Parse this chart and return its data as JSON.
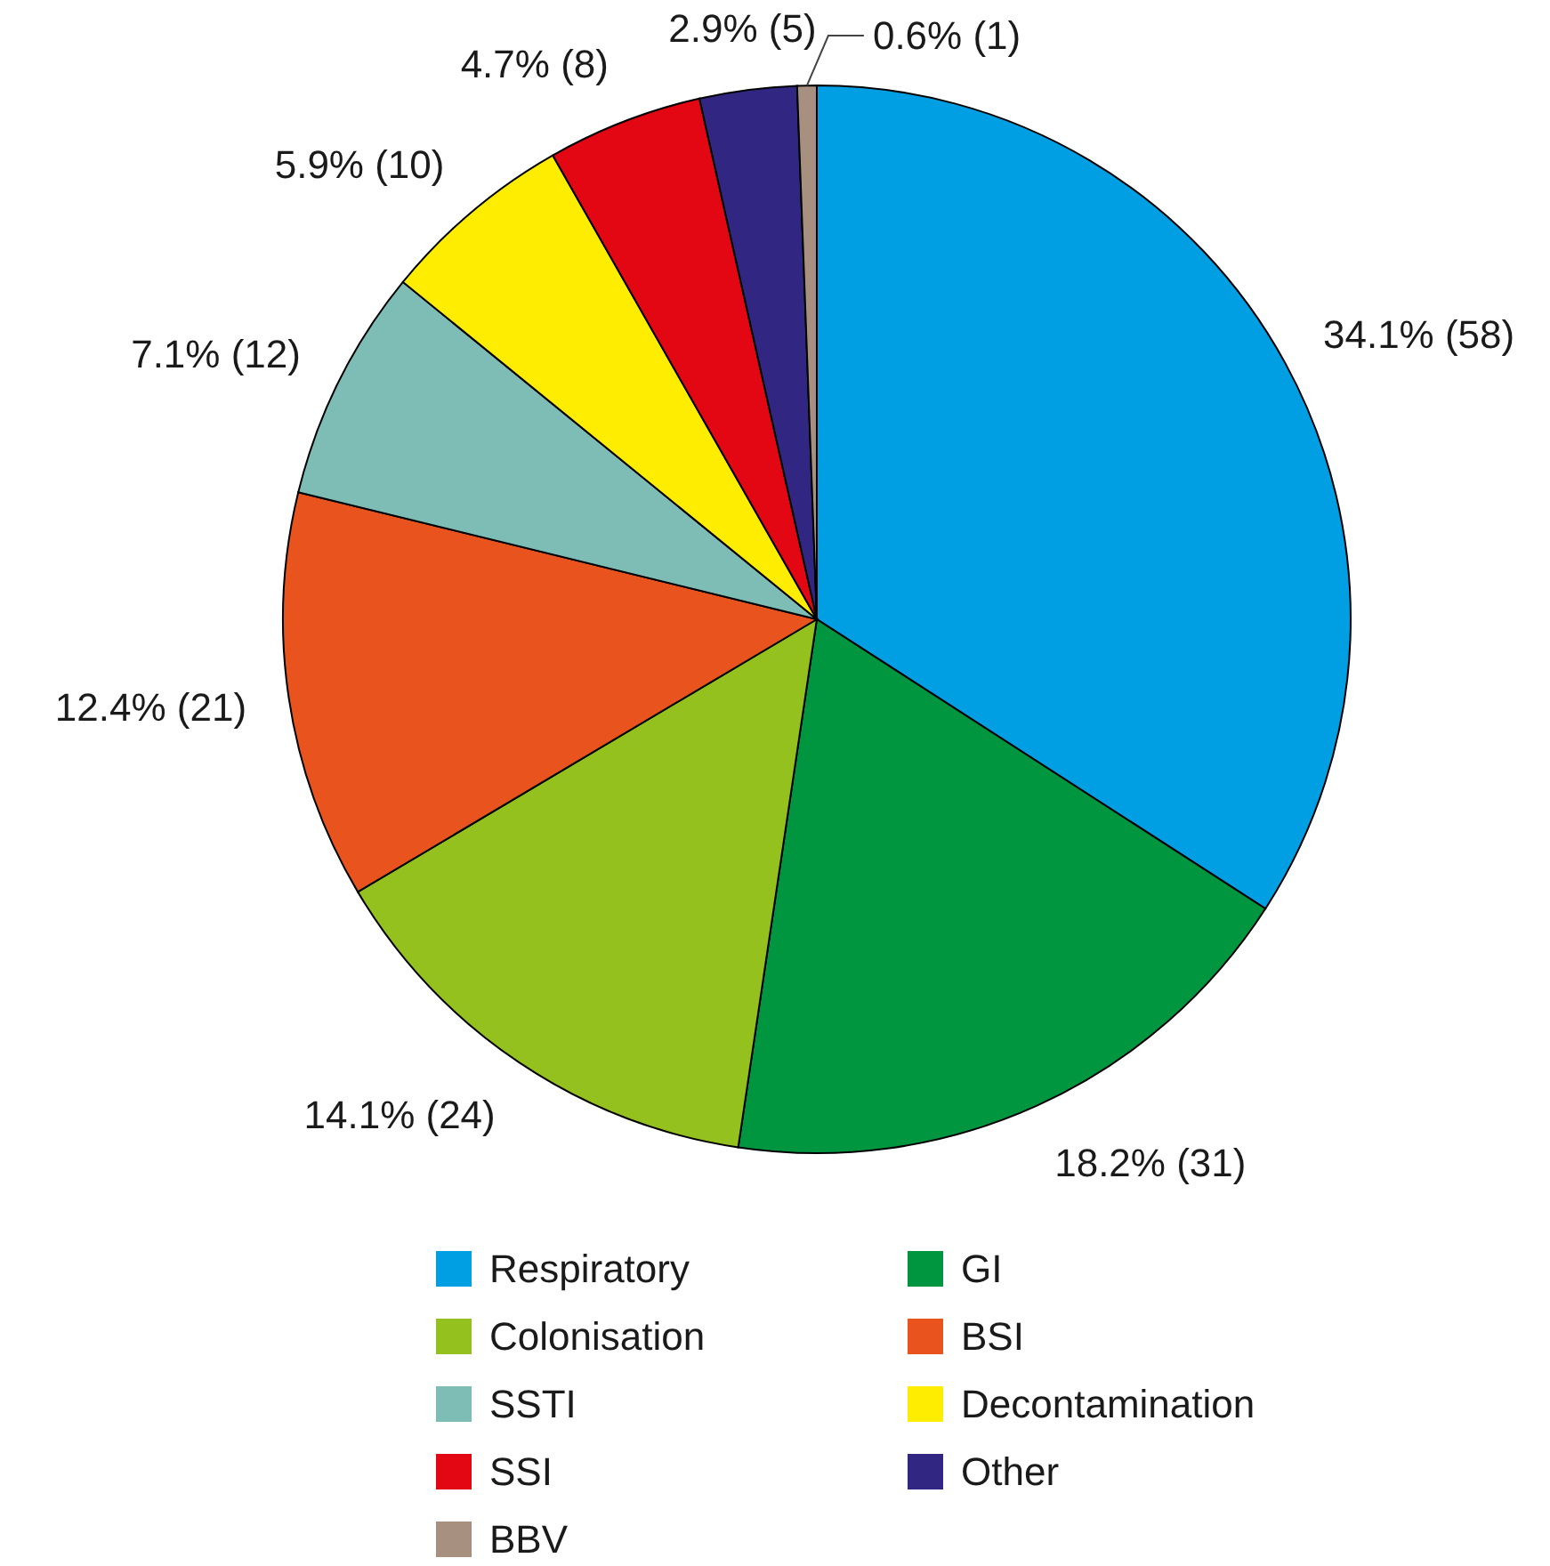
{
  "chart_data": {
    "type": "pie",
    "categories": [
      "Respiratory",
      "GI",
      "Colonisation",
      "BSI",
      "SSTI",
      "Decontamination",
      "SSI",
      "Other",
      "BBV"
    ],
    "values": [
      58,
      31,
      24,
      21,
      12,
      10,
      8,
      5,
      1
    ],
    "value_labels": [
      "34.1% (58)",
      "18.2% (31)",
      "14.1% (24)",
      "12.4% (21)",
      "7.1% (12)",
      "5.9% (10)",
      "4.7% (8)",
      "2.9% (5)",
      "0.6% (1)"
    ],
    "colors": [
      "#009fe3",
      "#009640",
      "#95c11f",
      "#e9531d",
      "#7dbdb6",
      "#ffed00",
      "#e30613",
      "#312783",
      "#a89080"
    ],
    "legend": "bottom"
  }
}
